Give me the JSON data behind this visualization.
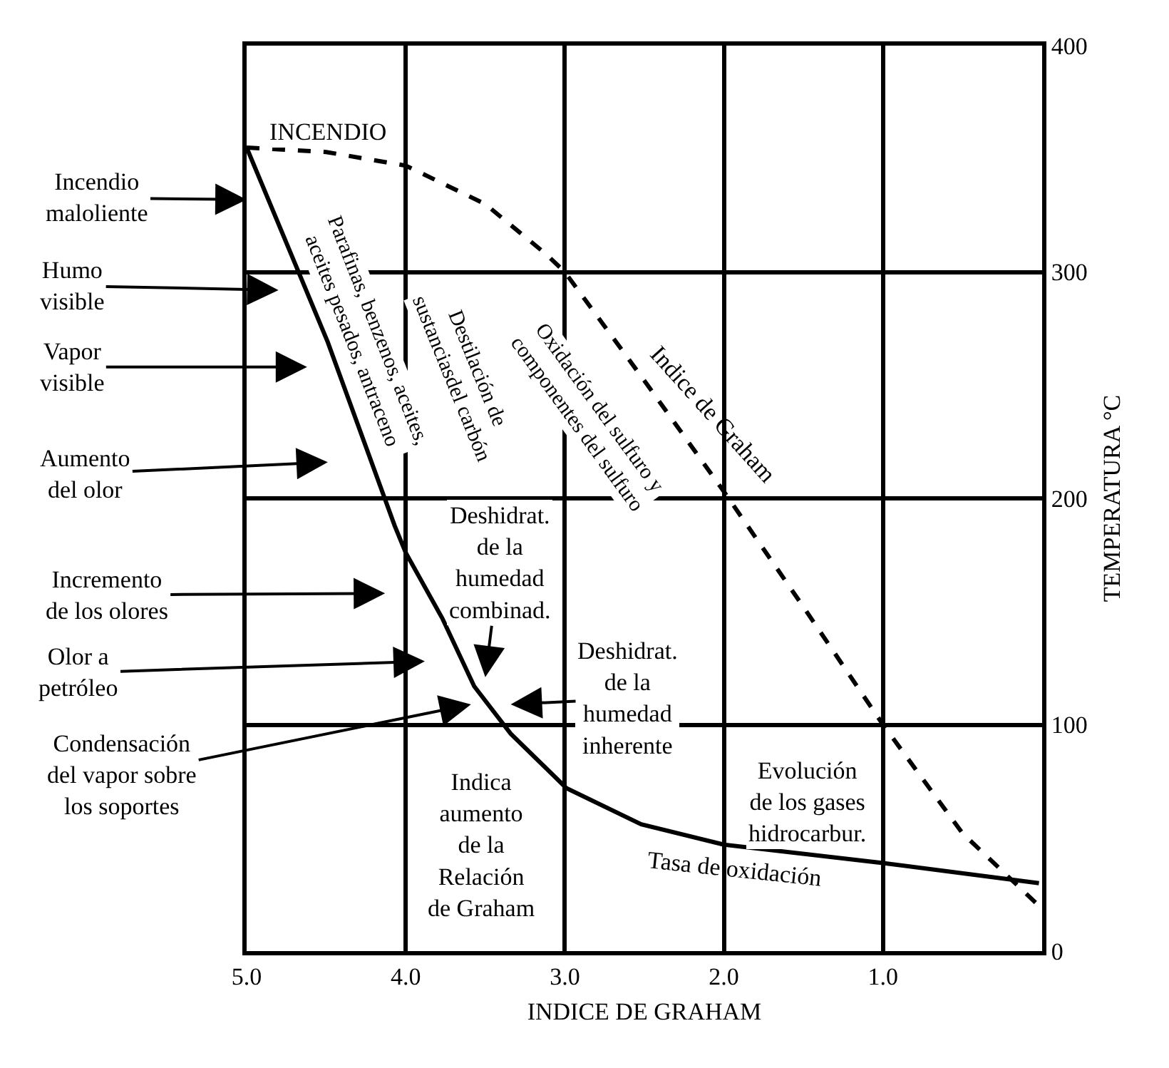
{
  "chart_data": {
    "type": "line",
    "xlabel": "INDICE DE GRAHAM",
    "ylabel": "TEMPERATURA °C",
    "xlim": [
      5,
      0
    ],
    "xticks": [
      {
        "value": 5,
        "label": "5.0"
      },
      {
        "value": 4,
        "label": "4.0"
      },
      {
        "value": 3,
        "label": "3.0"
      },
      {
        "value": 2,
        "label": "2.0"
      },
      {
        "value": 1,
        "label": "1.0"
      }
    ],
    "ylim": [
      0,
      400
    ],
    "yticks": [
      0,
      100,
      200,
      300,
      400
    ],
    "grid": true,
    "legend": false,
    "marker": "none",
    "series": [
      {
        "name": "Tasa de oxidación",
        "color": "#000000",
        "line_style": "solid",
        "x": [
          5.0,
          4.49,
          4.07,
          4.0,
          3.77,
          3.57,
          3.34,
          2.99,
          2.52,
          2.0,
          1.01,
          0.02
        ],
        "values": [
          355,
          269,
          188,
          176,
          147,
          117,
          96,
          72,
          56,
          47,
          39,
          30
        ]
      },
      {
        "name": "Indice de Graham",
        "color": "#000000",
        "line_style": "dashed",
        "x": [
          5.0,
          4.5,
          4.0,
          3.5,
          3.12,
          3.0,
          2.5,
          2.0,
          1.5,
          1.0,
          0.5,
          0.02
        ],
        "values": [
          355,
          353,
          347,
          330,
          308,
          300,
          252,
          203,
          152,
          100,
          52,
          20
        ]
      }
    ],
    "annotations": [
      "Incendio\nmaloliente",
      "Humo\nvisible",
      "Vapor\nvisible",
      "Aumento\ndel olor",
      "Incremento\nde los olores",
      "Olor a\npetróleo",
      "Condensación\ndel vapor sobre\nlos soportes",
      "Deshidrat.\nde la\nhumedad\ncombinad.",
      "Deshidrat.\nde la\nhumedad\ninherente",
      "INCENDIO",
      "Parafinas, benzenos, aceites,\naceites pesados, antraceno",
      "Destilación de\nsustanciasdel carbón",
      "Oxidación del sulfuro y\ncomponentes del sulfuro",
      "Indica\naumento\nde la\nRelación\nde Graham",
      "Evolución\nde los gases\nhidrocarbur."
    ]
  }
}
